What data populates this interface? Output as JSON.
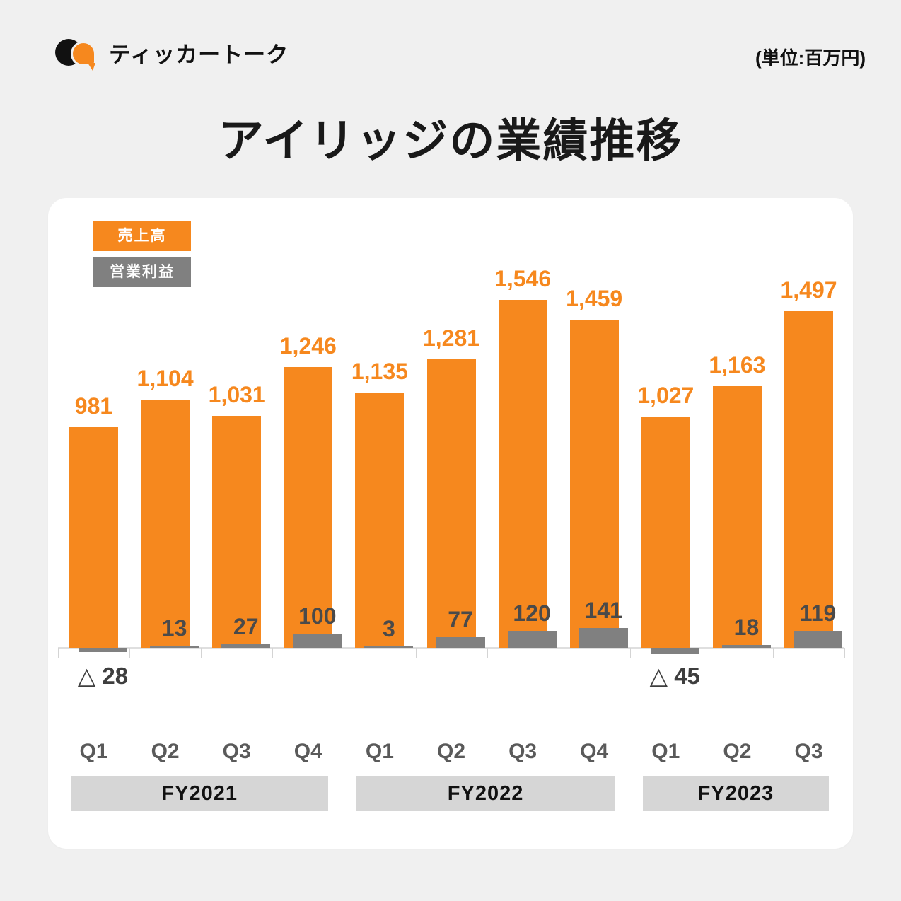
{
  "header": {
    "brand": "ティッカートーク",
    "unit_note": "(単位:百万円)",
    "title": "アイリッジの業績推移"
  },
  "colors": {
    "revenue_orange": "#F6881E",
    "profit_bar_gray": "#808080",
    "profit_label_gray": "#4A4A4A",
    "fiscal_band_gray": "#D6D6D6",
    "axis_line": "#DFDFDF",
    "page_background": "#F0F0F0",
    "card_background": "#FFFFFF"
  },
  "chart_data": {
    "type": "bar",
    "title": "アイリッジの業績推移",
    "unit": "百万円",
    "categories": [
      "Q1",
      "Q2",
      "Q3",
      "Q4",
      "Q1",
      "Q2",
      "Q3",
      "Q4",
      "Q1",
      "Q2",
      "Q3"
    ],
    "groups": [
      {
        "label": "FY2021",
        "span": 4
      },
      {
        "label": "FY2022",
        "span": 4
      },
      {
        "label": "FY2023",
        "span": 3
      }
    ],
    "series": [
      {
        "name": "売上高",
        "color": "#F6881E",
        "values": [
          981,
          1104,
          1031,
          1246,
          1135,
          1281,
          1546,
          1459,
          1027,
          1163,
          1497
        ]
      },
      {
        "name": "営業利益",
        "color": "#808080",
        "values": [
          -28,
          13,
          27,
          100,
          3,
          77,
          120,
          141,
          -45,
          18,
          119
        ]
      }
    ],
    "negative_prefix": "△",
    "legend_position": "top-left",
    "grid": false,
    "y_axis_visible": false
  }
}
